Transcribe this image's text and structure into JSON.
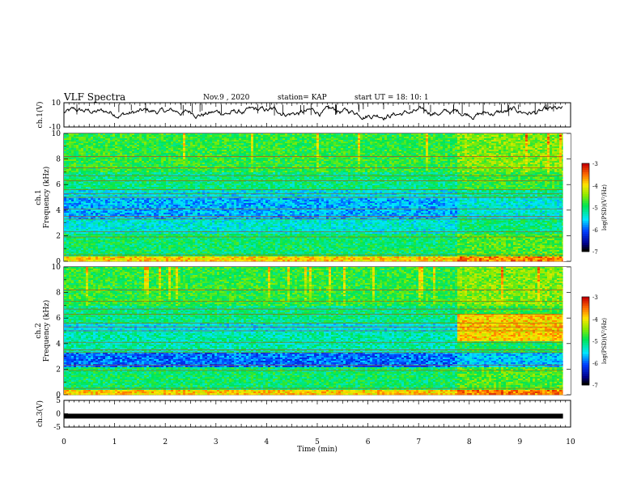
{
  "header": {
    "title": "VLF Spectra",
    "date": "Nov.9 , 2020",
    "station": "station= KAP",
    "start": "start UT = 18: 10: 1"
  },
  "chart_data": [
    {
      "type": "line",
      "name": "ch1-waveform",
      "ylabel": "ch.1(V)",
      "ylim": [
        -10,
        10
      ],
      "xlim": [
        0,
        10
      ],
      "yticks": [
        "10",
        "-10"
      ]
    },
    {
      "type": "heatmap",
      "name": "ch1-spectrogram",
      "ylabel": "ch.1 Frequency (kHz)",
      "ylim": [
        0,
        10
      ],
      "xlim": [
        0,
        10
      ],
      "yticks": [
        "0",
        "2",
        "4",
        "6",
        "8",
        "10"
      ],
      "colorbar": {
        "label": "log(PSD)(V²/Hz)",
        "range": [
          -7,
          -3
        ],
        "ticks": [
          "-3",
          "-4",
          "-5",
          "-6",
          "-7"
        ]
      }
    },
    {
      "type": "heatmap",
      "name": "ch2-spectrogram",
      "ylabel": "ch.2 Frequency (kHz)",
      "ylim": [
        0,
        10
      ],
      "xlim": [
        0,
        10
      ],
      "yticks": [
        "0",
        "2",
        "4",
        "6",
        "8",
        "10"
      ],
      "colorbar": {
        "label": "log(PSD)(V²/Hz)",
        "range": [
          -7,
          -3
        ],
        "ticks": [
          "-3",
          "-4",
          "-5",
          "-6",
          "-7"
        ]
      }
    },
    {
      "type": "line",
      "name": "ch3-signal",
      "ylabel": "ch.3(V)",
      "ylim": [
        -5,
        5
      ],
      "xlim": [
        0,
        10
      ],
      "yticks": [
        "5",
        "0",
        "-5"
      ]
    }
  ],
  "xaxis": {
    "label": "Time (min)",
    "ticks": [
      "0",
      "1",
      "2",
      "3",
      "4",
      "5",
      "6",
      "7",
      "8",
      "9",
      "10"
    ]
  }
}
